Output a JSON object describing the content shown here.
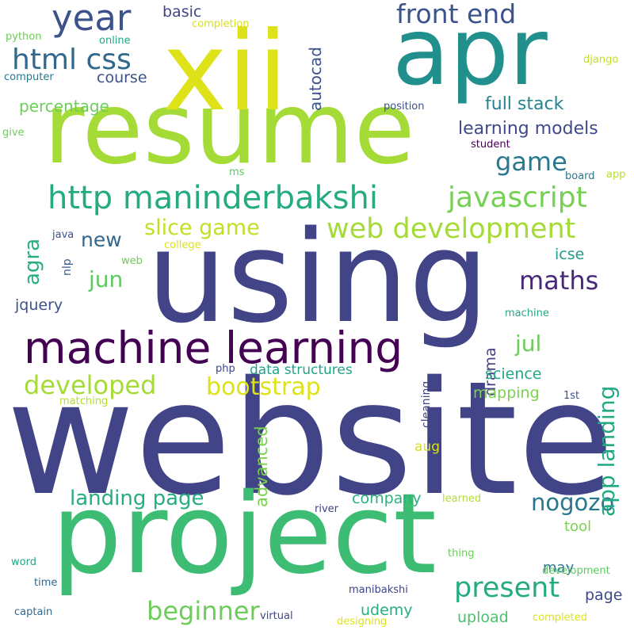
{
  "words": [
    {
      "text": "website",
      "color": "#414487",
      "vertical": false
    },
    {
      "text": "using",
      "color": "#414487",
      "vertical": false
    },
    {
      "text": "project",
      "color": "#3dbc74",
      "vertical": false
    },
    {
      "text": "resume",
      "color": "#a5db36",
      "vertical": false
    },
    {
      "text": "xii",
      "color": "#dde318",
      "vertical": false
    },
    {
      "text": "apr",
      "color": "#21908d",
      "vertical": false
    },
    {
      "text": "machine learning",
      "color": "#440154",
      "vertical": false
    },
    {
      "text": "http maninderbakshi",
      "color": "#25ab82",
      "vertical": false
    },
    {
      "text": "year",
      "color": "#3b528b",
      "vertical": false
    },
    {
      "text": "web development",
      "color": "#a5db36",
      "vertical": false
    },
    {
      "text": "present",
      "color": "#25ab82",
      "vertical": false
    },
    {
      "text": "javascript",
      "color": "#75d054",
      "vertical": false
    },
    {
      "text": "html css",
      "color": "#31688e",
      "vertical": false
    },
    {
      "text": "front end",
      "color": "#3b528b",
      "vertical": false
    },
    {
      "text": "game",
      "color": "#2a788e",
      "vertical": false
    },
    {
      "text": "maths",
      "color": "#482878",
      "vertical": false
    },
    {
      "text": "beginner",
      "color": "#6ccd5a",
      "vertical": false
    },
    {
      "text": "developed",
      "color": "#a5db36",
      "vertical": false
    },
    {
      "text": "bootstrap",
      "color": "#dde318",
      "vertical": false
    },
    {
      "text": "slice game",
      "color": "#c2df23",
      "vertical": false
    },
    {
      "text": "landing page",
      "color": "#26ad81",
      "vertical": false
    },
    {
      "text": "nogozo",
      "color": "#2a788e",
      "vertical": false
    },
    {
      "text": "learning models",
      "color": "#3e4a89",
      "vertical": false
    },
    {
      "text": "full stack",
      "color": "#25848e",
      "vertical": false
    },
    {
      "text": "jul",
      "color": "#6ccd5a",
      "vertical": false
    },
    {
      "text": "jun",
      "color": "#5ec962",
      "vertical": false
    },
    {
      "text": "new",
      "color": "#31688e",
      "vertical": false
    },
    {
      "text": "percentage",
      "color": "#6ccd5a",
      "vertical": false
    },
    {
      "text": "course",
      "color": "#3b528b",
      "vertical": false
    },
    {
      "text": "basic",
      "color": "#414487",
      "vertical": false
    },
    {
      "text": "app landing",
      "color": "#22a884",
      "vertical": true
    },
    {
      "text": "agra",
      "color": "#29af7f",
      "vertical": true
    },
    {
      "text": "autocad",
      "color": "#3b528b",
      "vertical": true
    },
    {
      "text": "advanced",
      "color": "#7ad151",
      "vertical": true
    },
    {
      "text": "drama",
      "color": "#433e85",
      "vertical": true
    },
    {
      "text": "cleaning",
      "color": "#414487",
      "vertical": true
    },
    {
      "text": "nlp",
      "color": "#365c8d",
      "vertical": true
    },
    {
      "text": "science",
      "color": "#22a884",
      "vertical": false
    },
    {
      "text": "mapping",
      "color": "#7ad151",
      "vertical": false
    },
    {
      "text": "data structures",
      "color": "#20a386",
      "vertical": false
    },
    {
      "text": "icse",
      "color": "#1f9e89",
      "vertical": false
    },
    {
      "text": "jquery",
      "color": "#3b528b",
      "vertical": false
    },
    {
      "text": "company",
      "color": "#2db27d",
      "vertical": false
    },
    {
      "text": "udemy",
      "color": "#29af7f",
      "vertical": false
    },
    {
      "text": "upload",
      "color": "#4ac16d",
      "vertical": false
    },
    {
      "text": "page",
      "color": "#3e4989",
      "vertical": false
    },
    {
      "text": "may",
      "color": "#2a788e",
      "vertical": false
    },
    {
      "text": "tool",
      "color": "#7ad151",
      "vertical": false
    },
    {
      "text": "aug",
      "color": "#d8e219",
      "vertical": false
    },
    {
      "text": "python",
      "color": "#6ccd5a",
      "vertical": false
    },
    {
      "text": "online",
      "color": "#22a884",
      "vertical": false
    },
    {
      "text": "computer",
      "color": "#2a788e",
      "vertical": false
    },
    {
      "text": "completion",
      "color": "#d8e219",
      "vertical": false
    },
    {
      "text": "django",
      "color": "#c2df23",
      "vertical": false
    },
    {
      "text": "position",
      "color": "#3b528b",
      "vertical": false
    },
    {
      "text": "student",
      "color": "#440154",
      "vertical": false
    },
    {
      "text": "give",
      "color": "#6ccd5a",
      "vertical": false
    },
    {
      "text": "ms",
      "color": "#5ec962",
      "vertical": false
    },
    {
      "text": "board",
      "color": "#2a788e",
      "vertical": false
    },
    {
      "text": "app",
      "color": "#b5de2b",
      "vertical": false
    },
    {
      "text": "java",
      "color": "#3b528b",
      "vertical": false
    },
    {
      "text": "college",
      "color": "#dde318",
      "vertical": false
    },
    {
      "text": "web",
      "color": "#6ccd5a",
      "vertical": false
    },
    {
      "text": "machine",
      "color": "#22a884",
      "vertical": false
    },
    {
      "text": "php",
      "color": "#414487",
      "vertical": false
    },
    {
      "text": "matching",
      "color": "#b5de2b",
      "vertical": false
    },
    {
      "text": "1st",
      "color": "#3b528b",
      "vertical": false
    },
    {
      "text": "river",
      "color": "#414487",
      "vertical": false
    },
    {
      "text": "learned",
      "color": "#b5de2b",
      "vertical": false
    },
    {
      "text": "word",
      "color": "#22a884",
      "vertical": false
    },
    {
      "text": "time",
      "color": "#31688e",
      "vertical": false
    },
    {
      "text": "thing",
      "color": "#6ccd5a",
      "vertical": false
    },
    {
      "text": "development",
      "color": "#5ec962",
      "vertical": false
    },
    {
      "text": "manibakshi",
      "color": "#414487",
      "vertical": false
    },
    {
      "text": "captain",
      "color": "#31688e",
      "vertical": false
    },
    {
      "text": "virtual",
      "color": "#414487",
      "vertical": false
    },
    {
      "text": "designing",
      "color": "#dde318",
      "vertical": false
    },
    {
      "text": "completed",
      "color": "#dde318",
      "vertical": false
    }
  ]
}
